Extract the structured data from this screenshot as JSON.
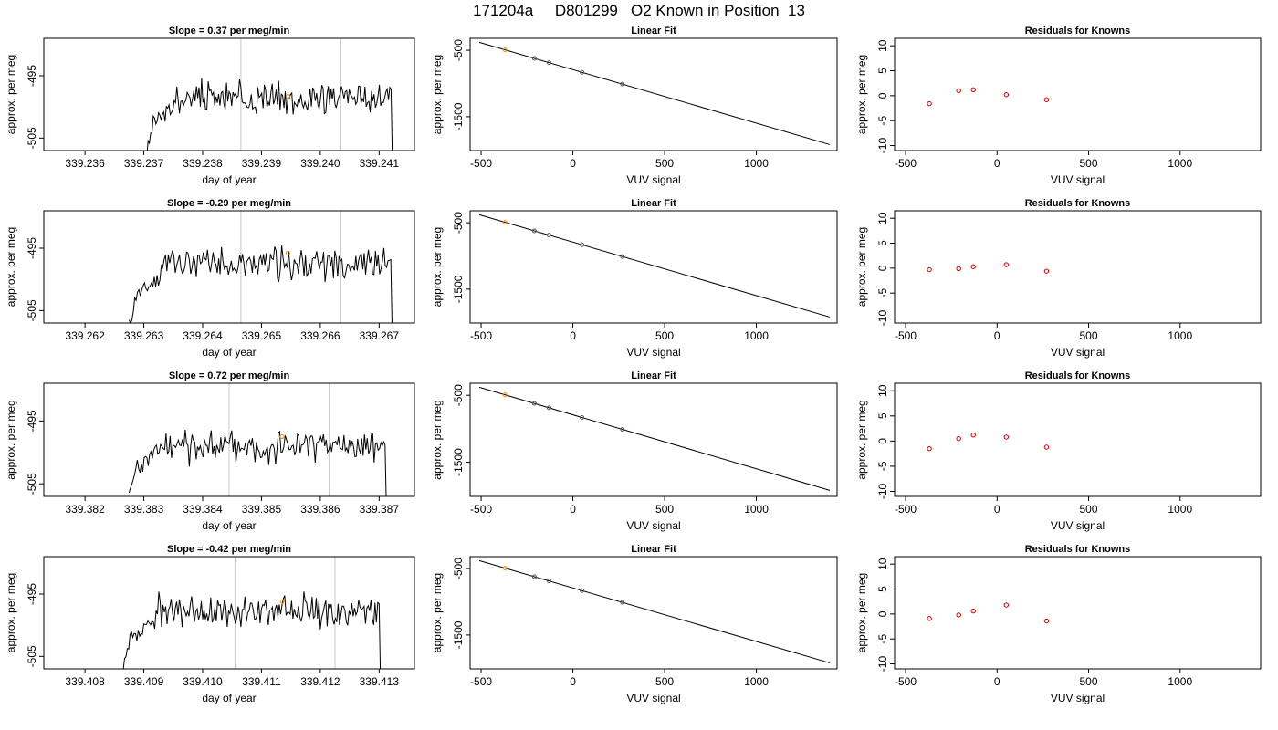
{
  "main_title": "171204a     D801299   O2 Known in Position  13",
  "colors": {
    "line": "#000000",
    "vline": "#c8c8c8",
    "marker": "#ff8c00",
    "residual": "#cc0000"
  },
  "chart_data": [
    {
      "type": "line",
      "title": "Slope =  0.37  per meg/min",
      "xlabel": "day of year",
      "ylabel": "approx. per meg",
      "xlim": [
        339.2353,
        339.2416
      ],
      "ylim": [
        -507,
        -489
      ],
      "xticks": [
        339.236,
        339.237,
        339.238,
        339.239,
        339.24,
        339.241
      ],
      "xtick_labels": [
        "339.236",
        "339.237",
        "339.238",
        "339.239",
        "339.240",
        "339.241"
      ],
      "yticks": [
        -495,
        -505
      ],
      "ytick_labels": [
        "-495",
        "-505"
      ],
      "start": 339.23705,
      "end": 339.24127,
      "seed": 3,
      "base": -498.5,
      "vlines": [
        339.23865,
        339.24035
      ],
      "marker": [
        339.23945,
        -498.3
      ]
    },
    {
      "type": "scatter",
      "title": "Linear Fit",
      "xlabel": "VUV signal",
      "ylabel": "approx. per meg",
      "xlim": [
        -560,
        1440
      ],
      "ylim": [
        -2010,
        -320
      ],
      "xticks": [
        -500,
        0,
        500,
        1000
      ],
      "xtick_labels": [
        "-500",
        "0",
        "500",
        "1000"
      ],
      "yticks": [
        -500,
        -1500
      ],
      "ytick_labels": [
        "-500",
        "-1500"
      ],
      "x": [
        -370,
        -210,
        -130,
        50,
        270
      ],
      "fit": [
        [
          -510,
          -380
        ],
        [
          1400,
          -1920
        ]
      ]
    },
    {
      "type": "scatter",
      "title": "Residuals for Knowns",
      "xlabel": "VUV signal",
      "ylabel": "approx. per meg",
      "xlim": [
        -560,
        1440
      ],
      "ylim": [
        -11,
        11.5
      ],
      "xticks": [
        -500,
        0,
        500,
        1000
      ],
      "xtick_labels": [
        "-500",
        "0",
        "500",
        "1000"
      ],
      "yticks": [
        10,
        5,
        0,
        -5,
        -10
      ],
      "ytick_labels": [
        "10",
        "5",
        "0",
        "-5",
        "-10"
      ],
      "x": [
        -370,
        -210,
        -130,
        50,
        270
      ],
      "y": [
        -1.6,
        1.0,
        1.2,
        0.2,
        -0.8
      ]
    },
    {
      "type": "line",
      "title": "Slope =  -0.29  per meg/min",
      "xlabel": "day of year",
      "ylabel": "approx. per meg",
      "xlim": [
        339.2613,
        339.2676
      ],
      "ylim": [
        -507,
        -489
      ],
      "xticks": [
        339.262,
        339.263,
        339.264,
        339.265,
        339.266,
        339.267
      ],
      "xtick_labels": [
        "339.262",
        "339.263",
        "339.264",
        "339.265",
        "339.266",
        "339.267"
      ],
      "yticks": [
        -495,
        -505
      ],
      "ytick_labels": [
        "-495",
        "-505"
      ],
      "start": 339.26275,
      "end": 339.26727,
      "seed": 11,
      "base": -497.5,
      "vlines": [
        339.26465,
        339.26635
      ],
      "marker": [
        339.26545,
        -495.8
      ]
    },
    {
      "type": "scatter",
      "title": "Linear Fit",
      "xlabel": "VUV signal",
      "ylabel": "approx. per meg",
      "xlim": [
        -560,
        1440
      ],
      "ylim": [
        -2010,
        -320
      ],
      "xticks": [
        -500,
        0,
        500,
        1000
      ],
      "xtick_labels": [
        "-500",
        "0",
        "500",
        "1000"
      ],
      "yticks": [
        -500,
        -1500
      ],
      "ytick_labels": [
        "-500",
        "-1500"
      ],
      "x": [
        -370,
        -210,
        -130,
        50,
        270
      ],
      "fit": [
        [
          -510,
          -380
        ],
        [
          1400,
          -1920
        ]
      ]
    },
    {
      "type": "scatter",
      "title": "Residuals for Knowns",
      "xlabel": "VUV signal",
      "ylabel": "approx. per meg",
      "xlim": [
        -560,
        1440
      ],
      "ylim": [
        -11,
        11.5
      ],
      "xticks": [
        -500,
        0,
        500,
        1000
      ],
      "xtick_labels": [
        "-500",
        "0",
        "500",
        "1000"
      ],
      "yticks": [
        10,
        5,
        0,
        -5,
        -10
      ],
      "ytick_labels": [
        "10",
        "5",
        "0",
        "-5",
        "-10"
      ],
      "x": [
        -370,
        -210,
        -130,
        50,
        270
      ],
      "y": [
        -0.3,
        -0.1,
        0.3,
        0.7,
        -0.6
      ]
    },
    {
      "type": "line",
      "title": "Slope =  0.72  per meg/min",
      "xlabel": "day of year",
      "ylabel": "approx. per meg",
      "xlim": [
        339.3813,
        339.3876
      ],
      "ylim": [
        -507,
        -489
      ],
      "xticks": [
        339.382,
        339.383,
        339.384,
        339.385,
        339.386,
        339.387
      ],
      "xtick_labels": [
        "339.382",
        "339.383",
        "339.384",
        "339.385",
        "339.386",
        "339.387"
      ],
      "yticks": [
        -495,
        -505
      ],
      "ytick_labels": [
        "-495",
        "-505"
      ],
      "start": 339.38275,
      "end": 339.38717,
      "seed": 23,
      "base": -499.0,
      "vlines": [
        339.38445,
        339.38615
      ],
      "marker": [
        339.38535,
        -497.5
      ]
    },
    {
      "type": "scatter",
      "title": "Linear Fit",
      "xlabel": "VUV signal",
      "ylabel": "approx. per meg",
      "xlim": [
        -560,
        1440
      ],
      "ylim": [
        -2010,
        -320
      ],
      "xticks": [
        -500,
        0,
        500,
        1000
      ],
      "xtick_labels": [
        "-500",
        "0",
        "500",
        "1000"
      ],
      "yticks": [
        -500,
        -1500
      ],
      "ytick_labels": [
        "-500",
        "-1500"
      ],
      "x": [
        -370,
        -210,
        -130,
        50,
        270
      ],
      "fit": [
        [
          -510,
          -380
        ],
        [
          1400,
          -1920
        ]
      ]
    },
    {
      "type": "scatter",
      "title": "Residuals for Knowns",
      "xlabel": "VUV signal",
      "ylabel": "approx. per meg",
      "xlim": [
        -560,
        1440
      ],
      "ylim": [
        -11,
        11.5
      ],
      "xticks": [
        -500,
        0,
        500,
        1000
      ],
      "xtick_labels": [
        "-500",
        "0",
        "500",
        "1000"
      ],
      "yticks": [
        10,
        5,
        0,
        -5,
        -10
      ],
      "ytick_labels": [
        "10",
        "5",
        "0",
        "-5",
        "-10"
      ],
      "x": [
        -370,
        -210,
        -130,
        50,
        270
      ],
      "y": [
        -1.5,
        0.5,
        1.2,
        0.8,
        -1.2
      ]
    },
    {
      "type": "line",
      "title": "Slope =  -0.42  per meg/min",
      "xlabel": "day of year",
      "ylabel": "approx. per meg",
      "xlim": [
        339.4073,
        339.4136
      ],
      "ylim": [
        -507,
        -489
      ],
      "xticks": [
        339.408,
        339.409,
        339.41,
        339.411,
        339.412,
        339.413
      ],
      "xtick_labels": [
        "339.408",
        "339.409",
        "339.410",
        "339.411",
        "339.412",
        "339.413"
      ],
      "yticks": [
        -495,
        -505
      ],
      "ytick_labels": [
        "-495",
        "-505"
      ],
      "start": 339.40865,
      "end": 339.41307,
      "seed": 37,
      "base": -497.8,
      "vlines": [
        339.41055,
        339.41225
      ],
      "marker": [
        339.41135,
        -496.2
      ]
    },
    {
      "type": "scatter",
      "title": "Linear Fit",
      "xlabel": "VUV signal",
      "ylabel": "approx. per meg",
      "xlim": [
        -560,
        1440
      ],
      "ylim": [
        -2010,
        -320
      ],
      "xticks": [
        -500,
        0,
        500,
        1000
      ],
      "xtick_labels": [
        "-500",
        "0",
        "500",
        "1000"
      ],
      "yticks": [
        -500,
        -1500
      ],
      "ytick_labels": [
        "-500",
        "-1500"
      ],
      "x": [
        -370,
        -210,
        -130,
        50,
        270
      ],
      "fit": [
        [
          -510,
          -380
        ],
        [
          1400,
          -1920
        ]
      ]
    },
    {
      "type": "scatter",
      "title": "Residuals for Knowns",
      "xlabel": "VUV signal",
      "ylabel": "approx. per meg",
      "xlim": [
        -560,
        1440
      ],
      "ylim": [
        -11,
        11.5
      ],
      "xticks": [
        -500,
        0,
        500,
        1000
      ],
      "xtick_labels": [
        "-500",
        "0",
        "500",
        "1000"
      ],
      "yticks": [
        10,
        5,
        0,
        -5,
        -10
      ],
      "ytick_labels": [
        "10",
        "5",
        "0",
        "-5",
        "-10"
      ],
      "x": [
        -370,
        -210,
        -130,
        50,
        270
      ],
      "y": [
        -0.9,
        -0.2,
        0.6,
        1.8,
        -1.4
      ]
    }
  ]
}
